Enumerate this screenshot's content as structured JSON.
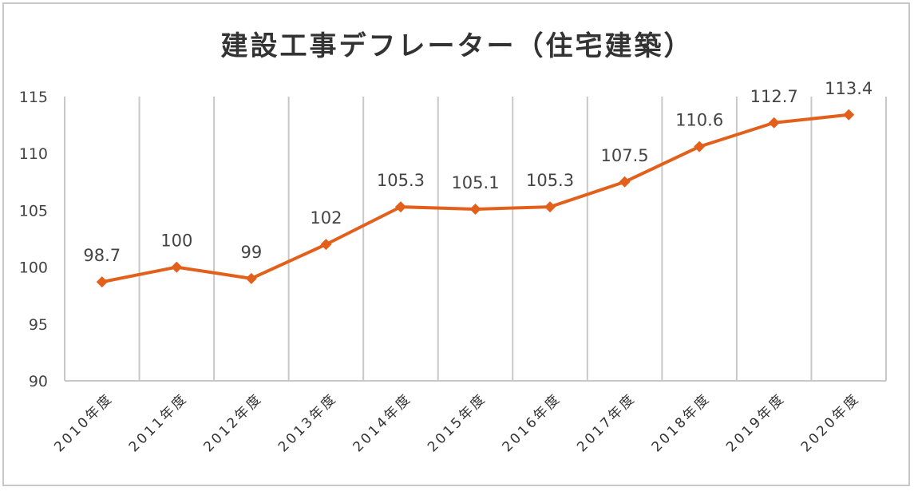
{
  "chart_data": {
    "type": "line",
    "title": "建設工事デフレーター（住宅建築）",
    "categories": [
      "2010年度",
      "2011年度",
      "2012年度",
      "2013年度",
      "2014年度",
      "2015年度",
      "2016年度",
      "2017年度",
      "2018年度",
      "2019年度",
      "2020年度"
    ],
    "series": [
      {
        "values": [
          98.7,
          100,
          99,
          102,
          105.3,
          105.1,
          105.3,
          107.5,
          110.6,
          112.7,
          113.4
        ]
      }
    ],
    "data_labels": [
      "98.7",
      "100",
      "99",
      "102",
      "105.3",
      "105.1",
      "105.3",
      "107.5",
      "110.6",
      "112.7",
      "113.4"
    ],
    "ylim": [
      90,
      115
    ],
    "yticks": [
      "90",
      "95",
      "100",
      "105",
      "110",
      "115"
    ],
    "xlabel": "",
    "ylabel": "",
    "grid": "vertical",
    "legend": "none",
    "line_color": "#E2601B",
    "marker": "diamond"
  }
}
